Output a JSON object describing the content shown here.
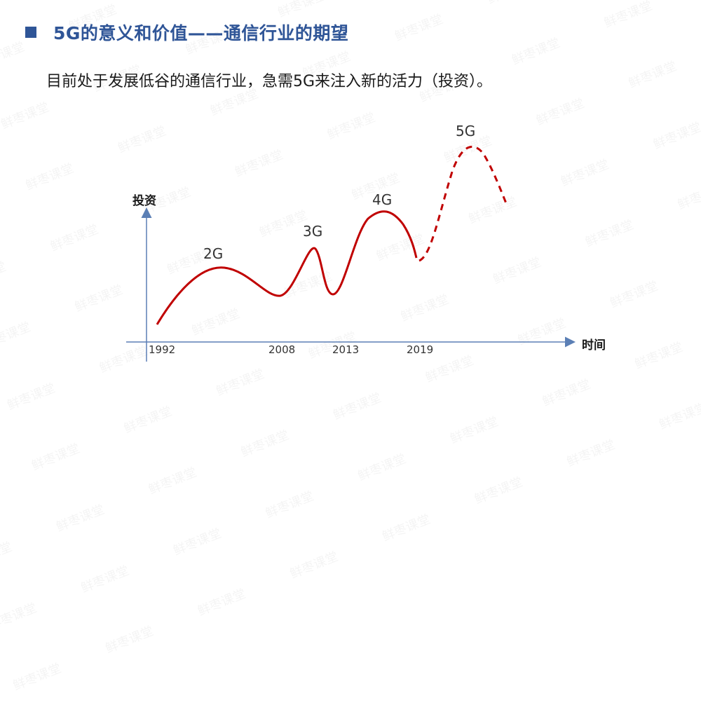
{
  "title": "5G的意义和价值——通信行业的期望",
  "subtitle": "目前处于发展低谷的通信行业，急需5G来注入新的活力（投资）。",
  "watermark": "鲜枣课堂",
  "diagram": {
    "y_axis_label": "投资",
    "x_axis_label": "时间",
    "generations": [
      "2G",
      "3G",
      "4G",
      "5G"
    ],
    "years": [
      "1992",
      "2008",
      "2013",
      "2019"
    ],
    "colors": {
      "curve": "#c00000",
      "axis": "#5b7fb5",
      "title": "#2f5597"
    }
  }
}
